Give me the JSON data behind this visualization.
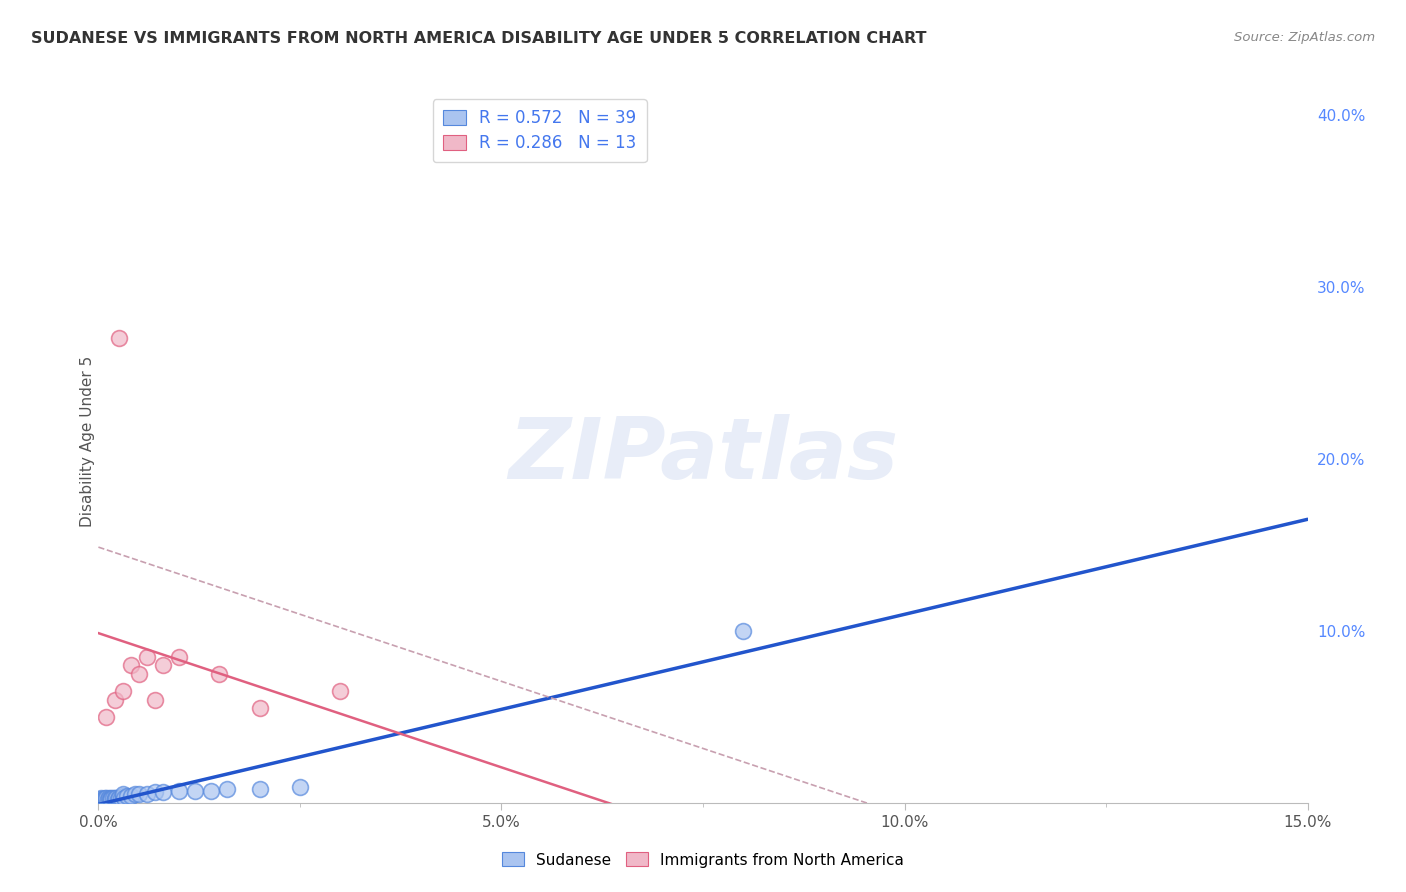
{
  "title": "SUDANESE VS IMMIGRANTS FROM NORTH AMERICA DISABILITY AGE UNDER 5 CORRELATION CHART",
  "source": "Source: ZipAtlas.com",
  "ylabel": "Disability Age Under 5",
  "xlim": [
    0.0,
    0.15
  ],
  "ylim": [
    0.0,
    0.42
  ],
  "blue_color": "#aac4f0",
  "blue_edge_color": "#5588dd",
  "pink_color": "#f0b8c8",
  "pink_edge_color": "#e06080",
  "blue_line_color": "#2255cc",
  "pink_solid_color": "#e06080",
  "pink_dash_color": "#c8a0b0",
  "R_blue": 0.572,
  "N_blue": 39,
  "R_pink": 0.286,
  "N_pink": 13,
  "legend_label_blue": "Sudanese",
  "legend_label_pink": "Immigrants from North America",
  "watermark": "ZIPatlas",
  "sudanese_x": [
    0.0002,
    0.0003,
    0.0004,
    0.0005,
    0.0006,
    0.0007,
    0.0008,
    0.0009,
    0.001,
    0.001,
    0.0012,
    0.0013,
    0.0014,
    0.0015,
    0.0016,
    0.0018,
    0.002,
    0.002,
    0.0022,
    0.0024,
    0.0026,
    0.0028,
    0.003,
    0.003,
    0.0032,
    0.0035,
    0.004,
    0.0045,
    0.005,
    0.006,
    0.007,
    0.008,
    0.01,
    0.012,
    0.014,
    0.016,
    0.02,
    0.025,
    0.08
  ],
  "sudanese_y": [
    0.002,
    0.003,
    0.001,
    0.002,
    0.001,
    0.002,
    0.003,
    0.001,
    0.002,
    0.003,
    0.002,
    0.003,
    0.002,
    0.003,
    0.002,
    0.003,
    0.002,
    0.003,
    0.003,
    0.002,
    0.003,
    0.003,
    0.004,
    0.005,
    0.003,
    0.004,
    0.004,
    0.005,
    0.005,
    0.005,
    0.006,
    0.006,
    0.007,
    0.007,
    0.007,
    0.008,
    0.008,
    0.009,
    0.1
  ],
  "immigrants_x": [
    0.001,
    0.002,
    0.0025,
    0.003,
    0.004,
    0.005,
    0.006,
    0.007,
    0.008,
    0.01,
    0.015,
    0.02,
    0.03
  ],
  "immigrants_y": [
    0.05,
    0.06,
    0.27,
    0.065,
    0.08,
    0.075,
    0.085,
    0.06,
    0.08,
    0.085,
    0.075,
    0.055,
    0.065
  ],
  "background_color": "#ffffff",
  "grid_color": "#ddddee",
  "title_color": "#333333",
  "source_color": "#888888",
  "tick_label_color": "#555555",
  "right_tick_color": "#5588ff",
  "watermark_color": "#ccd8f0"
}
